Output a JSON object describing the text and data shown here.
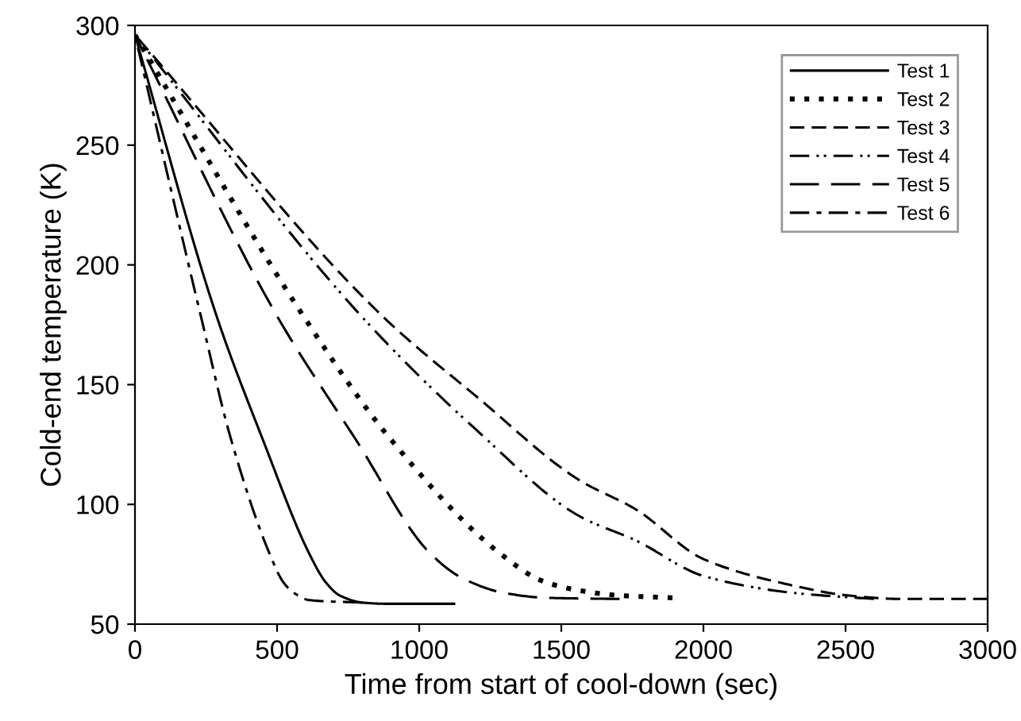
{
  "chart_data": {
    "type": "line",
    "xlabel": "Time from start of cool-down (sec)",
    "ylabel": "Cold-end temperature (K)",
    "xlim": [
      0,
      3000
    ],
    "ylim": [
      50,
      300
    ],
    "xticks": [
      0,
      500,
      1000,
      1500,
      2000,
      2500,
      3000
    ],
    "yticks": [
      50,
      100,
      150,
      200,
      250,
      300
    ],
    "grid": false,
    "legend": "top right",
    "series": [
      {
        "name": "Test 1",
        "color": "#000000",
        "line_style": "solid",
        "x": [
          0,
          289,
          450,
          615,
          671,
          720,
          800,
          880,
          1127
        ],
        "values": [
          296,
          178,
          127,
          79,
          67.5,
          62,
          59,
          58.5,
          58.5
        ]
      },
      {
        "name": "Test 2",
        "color": "#000000",
        "line_style": "dotted",
        "x": [
          0,
          596,
          894,
          1290,
          1434,
          1565,
          1700,
          1891
        ],
        "values": [
          296,
          178,
          128,
          79,
          68,
          64,
          62,
          61
        ]
      },
      {
        "name": "Test 3",
        "color": "#000000",
        "line_style": "dashed",
        "x": [
          0,
          876,
          1202,
          1565,
          1761,
          2003,
          2320,
          2506,
          2700,
          3000
        ],
        "values": [
          296,
          178,
          145,
          110,
          98,
          77,
          66,
          62,
          60.5,
          60.5
        ]
      },
      {
        "name": "Test 4",
        "color": "#000000",
        "line_style": "dashdotdot",
        "x": [
          0,
          801,
          1202,
          1565,
          1761,
          2003,
          2320,
          2600
        ],
        "values": [
          296,
          178,
          131,
          95,
          85,
          70,
          63,
          60.5
        ]
      },
      {
        "name": "Test 5",
        "color": "#000000",
        "line_style": "longdash",
        "x": [
          0,
          503,
          772,
          1043,
          1155,
          1300,
          1444,
          1705
        ],
        "values": [
          296,
          178,
          128,
          79,
          69,
          63,
          61,
          60.5
        ]
      },
      {
        "name": "Test 6",
        "color": "#000000",
        "line_style": "dashdot",
        "x": [
          0,
          233,
          336,
          475,
          522,
          560,
          615,
          800
        ],
        "values": [
          296,
          178,
          128,
          79,
          67.5,
          63,
          60,
          59
        ]
      }
    ]
  }
}
